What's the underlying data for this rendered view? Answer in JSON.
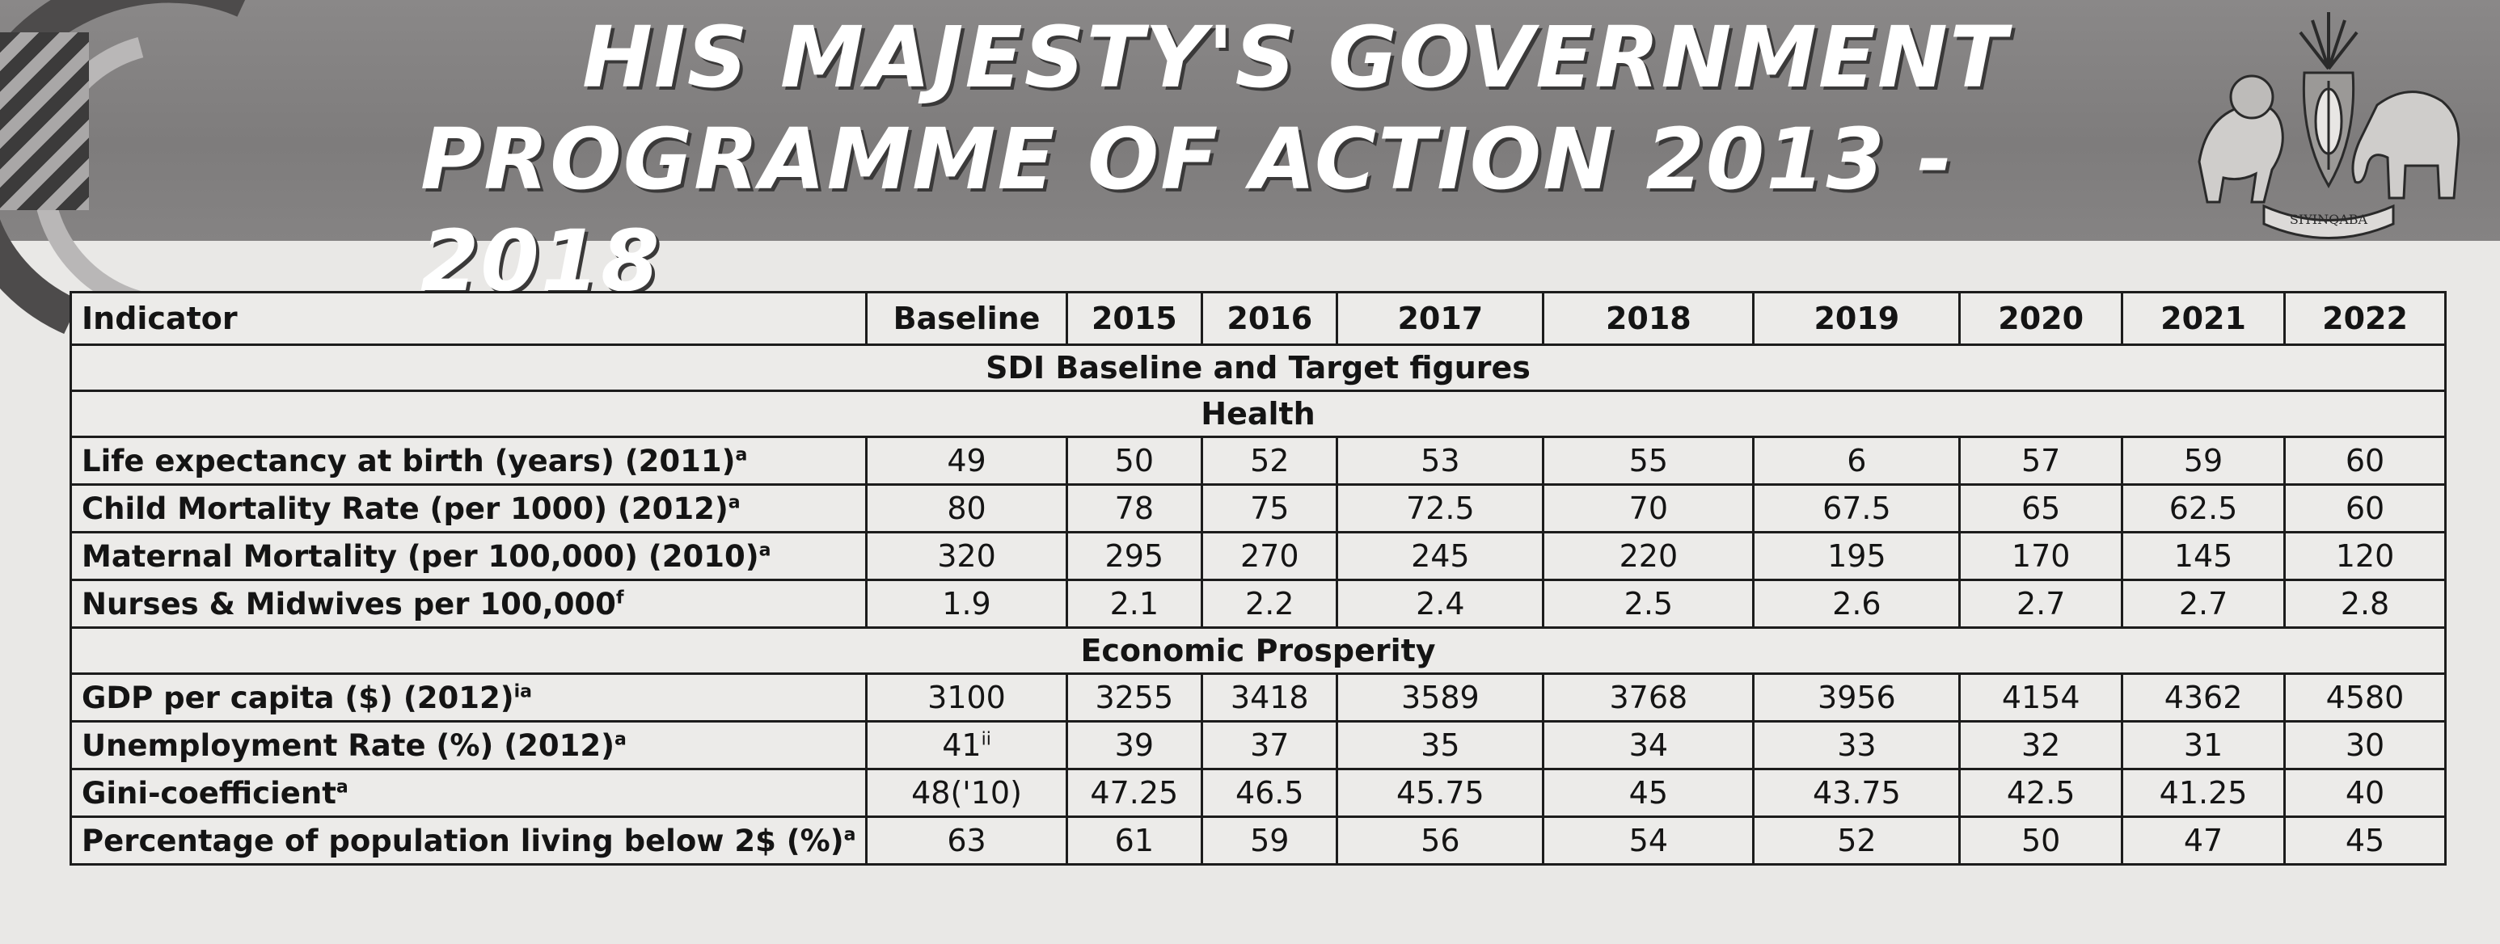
{
  "banner": {
    "title_line1": "HIS MAJESTY'S GOVERNMENT",
    "title_line2": "PROGRAMME OF ACTION 2013 - 2018",
    "emblem_motto": "SIYINQABA"
  },
  "table": {
    "headers": [
      "Indicator",
      "Baseline",
      "2015",
      "2016",
      "2017",
      "2018",
      "2019",
      "2020",
      "2021",
      "2022"
    ],
    "main_section": "SDI Baseline and Target figures",
    "groups": [
      {
        "title": "Health",
        "rows": [
          {
            "label": "Life expectancy at birth (years) (2011)",
            "sup": "a",
            "baseline": "49",
            "baseline_sup": "",
            "values": [
              "50",
              "52",
              "53",
              "55",
              "6",
              "57",
              "59",
              "60"
            ]
          },
          {
            "label": "Child Mortality Rate (per 1000) (2012)",
            "sup": "a",
            "baseline": "80",
            "baseline_sup": "",
            "values": [
              "78",
              "75",
              "72.5",
              "70",
              "67.5",
              "65",
              "62.5",
              "60"
            ]
          },
          {
            "label": "Maternal Mortality (per 100,000) (2010)",
            "sup": "a",
            "baseline": "320",
            "baseline_sup": "",
            "values": [
              "295",
              "270",
              "245",
              "220",
              "195",
              "170",
              "145",
              "120"
            ]
          },
          {
            "label": "Nurses & Midwives per 100,000",
            "sup": "f",
            "baseline": "1.9",
            "baseline_sup": "",
            "values": [
              "2.1",
              "2.2",
              "2.4",
              "2.5",
              "2.6",
              "2.7",
              "2.7",
              "2.8"
            ]
          }
        ]
      },
      {
        "title": "Economic Prosperity",
        "rows": [
          {
            "label": "GDP per capita ($) (2012)",
            "sup": "ia",
            "baseline": "3100",
            "baseline_sup": "",
            "values": [
              "3255",
              "3418",
              "3589",
              "3768",
              "3956",
              "4154",
              "4362",
              "4580"
            ]
          },
          {
            "label": "Unemployment Rate (%) (2012)",
            "sup": "a",
            "baseline": "41",
            "baseline_sup": "ii",
            "values": [
              "39",
              "37",
              "35",
              "34",
              "33",
              "32",
              "31",
              "30"
            ]
          },
          {
            "label": "Gini-coefficient",
            "sup": "a",
            "baseline": "48('10)",
            "baseline_sup": "",
            "values": [
              "47.25",
              "46.5",
              "45.75",
              "45",
              "43.75",
              "42.5",
              "41.25",
              "40"
            ]
          },
          {
            "label": "Percentage of population living below 2$ (%)",
            "sup": "a",
            "baseline": "63",
            "baseline_sup": "",
            "values": [
              "61",
              "59",
              "56",
              "54",
              "52",
              "50",
              "47",
              "45"
            ]
          }
        ]
      }
    ]
  }
}
